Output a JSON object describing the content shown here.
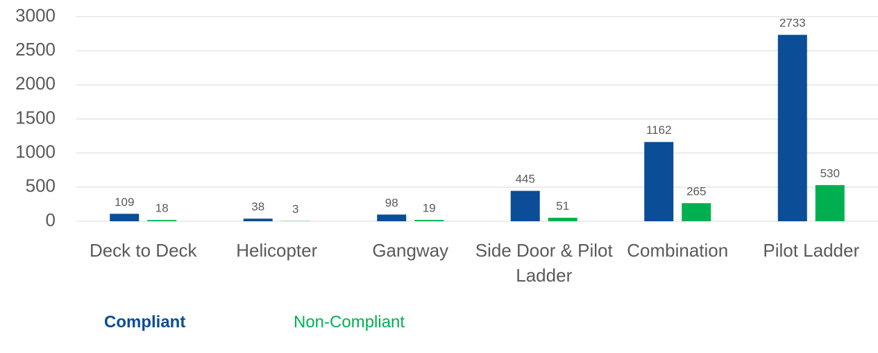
{
  "chart_data": {
    "type": "bar",
    "categories": [
      "Deck to Deck",
      "Helicopter",
      "Gangway",
      "Side Door & Pilot Ladder",
      "Combination",
      "Pilot Ladder"
    ],
    "series": [
      {
        "name": "Compliant",
        "color": "#0b4d96",
        "values": [
          109,
          38,
          98,
          445,
          1162,
          2733
        ]
      },
      {
        "name": "Non-Compliant",
        "color": "#00b050",
        "values": [
          18,
          3,
          19,
          51,
          265,
          530
        ]
      }
    ],
    "ylim": [
      0,
      3000
    ],
    "yticks": [
      0,
      500,
      1000,
      1500,
      2000,
      2500,
      3000
    ],
    "grid": true,
    "legend": "bottom"
  }
}
